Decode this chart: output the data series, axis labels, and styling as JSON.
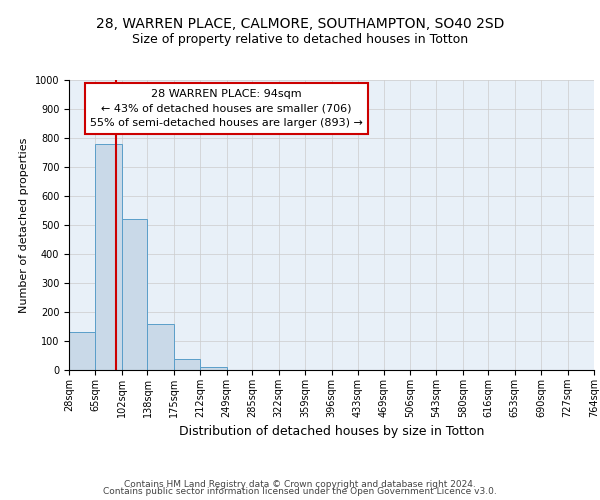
{
  "title1": "28, WARREN PLACE, CALMORE, SOUTHAMPTON, SO40 2SD",
  "title2": "Size of property relative to detached houses in Totton",
  "xlabel": "Distribution of detached houses by size in Totton",
  "ylabel": "Number of detached properties",
  "bin_edges": [
    28,
    65,
    102,
    138,
    175,
    212,
    249,
    285,
    322,
    359,
    396,
    433,
    469,
    506,
    543,
    580,
    616,
    653,
    690,
    727,
    764
  ],
  "bar_heights": [
    130,
    778,
    522,
    157,
    37,
    12,
    0,
    0,
    0,
    0,
    0,
    0,
    0,
    0,
    0,
    0,
    0,
    0,
    0,
    0
  ],
  "bar_color": "#c9d9e8",
  "bar_edge_color": "#5a9ec9",
  "property_sqm": 94,
  "red_line_color": "#cc0000",
  "annotation_text": "28 WARREN PLACE: 94sqm\n← 43% of detached houses are smaller (706)\n55% of semi-detached houses are larger (893) →",
  "annotation_box_color": "#cc0000",
  "ylim": [
    0,
    1000
  ],
  "yticks": [
    0,
    100,
    200,
    300,
    400,
    500,
    600,
    700,
    800,
    900,
    1000
  ],
  "grid_color": "#cccccc",
  "bg_color": "#e8f0f8",
  "footer_line1": "Contains HM Land Registry data © Crown copyright and database right 2024.",
  "footer_line2": "Contains public sector information licensed under the Open Government Licence v3.0.",
  "title1_fontsize": 10,
  "title2_fontsize": 9,
  "xlabel_fontsize": 9,
  "ylabel_fontsize": 8,
  "tick_fontsize": 7,
  "annot_fontsize": 8,
  "footer_fontsize": 6.5
}
